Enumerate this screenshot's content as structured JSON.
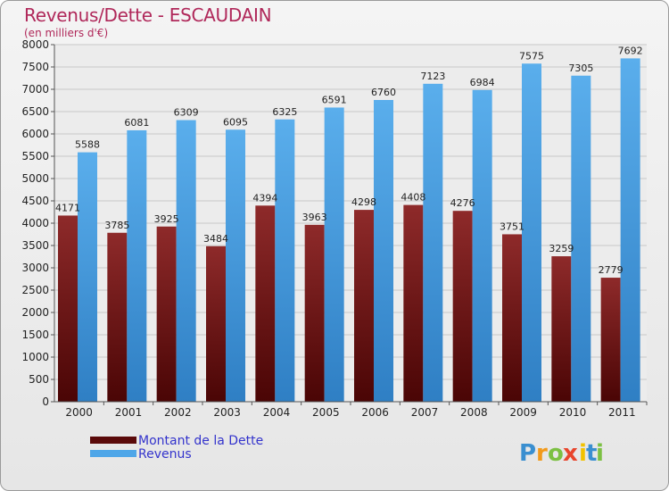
{
  "chart_data": {
    "type": "bar",
    "title": "Revenus/Dette - ESCAUDAIN",
    "subtitle": "(en milliers d'€)",
    "xlabel": "",
    "ylabel": "",
    "ylim": [
      0,
      8000
    ],
    "yticks": [
      0,
      500,
      1000,
      1500,
      2000,
      2500,
      3000,
      3500,
      4000,
      4500,
      5000,
      5500,
      6000,
      6500,
      7000,
      7500,
      8000
    ],
    "grid": true,
    "legend_position": "bottom-left",
    "categories": [
      "2000",
      "2001",
      "2002",
      "2003",
      "2004",
      "2005",
      "2006",
      "2007",
      "2008",
      "2009",
      "2010",
      "2011"
    ],
    "series": [
      {
        "name": "Montant de la Dette",
        "color": "#7a1a1a",
        "values": [
          4171,
          3785,
          3925,
          3484,
          4394,
          3963,
          4298,
          4408,
          4276,
          3751,
          3259,
          2779
        ]
      },
      {
        "name": "Revenus",
        "color": "#4ea6e8",
        "values": [
          5588,
          6081,
          6309,
          6095,
          6325,
          6591,
          6760,
          7123,
          6984,
          7575,
          7305,
          7692
        ]
      }
    ]
  },
  "logo": {
    "letters": [
      "P",
      "r",
      "o",
      "x",
      "i",
      "t",
      "i"
    ],
    "colors": [
      "#3a8fd0",
      "#f29a1a",
      "#7cc043",
      "#e8452c",
      "#f2c200",
      "#3a8fd0",
      "#7cc043"
    ]
  }
}
